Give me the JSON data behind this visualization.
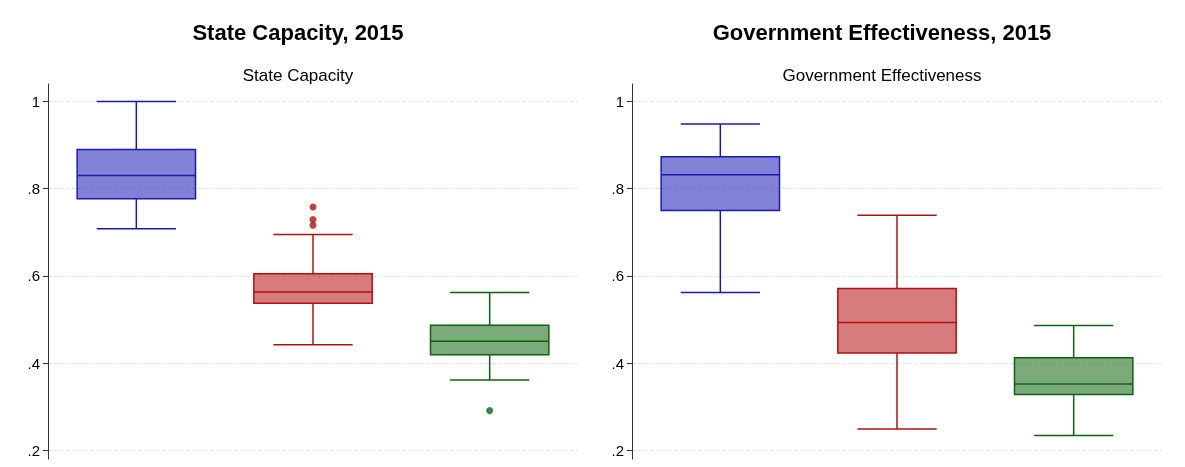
{
  "chart_data": [
    {
      "type": "box",
      "title": "State Capacity, 2015",
      "subtitle": "State Capacity",
      "categories": [
        null,
        null,
        null
      ],
      "colors": [
        "#1a1ab4",
        "#b41010",
        "#0e640e"
      ],
      "boxes": [
        {
          "low": 0.708,
          "q1": 0.777,
          "median": 0.83,
          "q3": 0.89,
          "high": 1.0
        },
        {
          "low": 0.442,
          "q1": 0.537,
          "median": 0.563,
          "q3": 0.605,
          "high": 0.695,
          "outliers": [
            0.758,
            0.729,
            0.716
          ]
        },
        {
          "low": 0.361,
          "q1": 0.419,
          "median": 0.45,
          "q3": 0.487,
          "high": 0.562,
          "outliers": [
            0.291
          ]
        }
      ],
      "ylim": [
        0.18,
        1.04
      ],
      "yticks": [
        {
          "value": 0.2,
          "label": ".2"
        },
        {
          "value": 0.4,
          "label": ".4"
        },
        {
          "value": 0.6,
          "label": ".6"
        },
        {
          "value": 0.8,
          "label": ".8"
        },
        {
          "value": 1,
          "label": "1"
        }
      ],
      "grid": "y"
    },
    {
      "type": "box",
      "title": "Government Effectiveness, 2015",
      "subtitle": "Government Effectiveness",
      "categories": [
        null,
        null,
        null
      ],
      "colors": [
        "#1a1ab4",
        "#b41010",
        "#0e640e"
      ],
      "boxes": [
        {
          "low": 0.562,
          "q1": 0.75,
          "median": 0.832,
          "q3": 0.873,
          "high": 0.948
        },
        {
          "low": 0.249,
          "q1": 0.423,
          "median": 0.493,
          "q3": 0.571,
          "high": 0.739
        },
        {
          "low": 0.234,
          "q1": 0.328,
          "median": 0.352,
          "q3": 0.412,
          "high": 0.486
        }
      ],
      "ylim": [
        0.18,
        1.04
      ],
      "yticks": [
        {
          "value": 0.2,
          "label": ".2"
        },
        {
          "value": 0.4,
          "label": ".4"
        },
        {
          "value": 0.6,
          "label": ".6"
        },
        {
          "value": 0.8,
          "label": ".8"
        },
        {
          "value": 1,
          "label": "1"
        }
      ],
      "grid": "y"
    }
  ]
}
